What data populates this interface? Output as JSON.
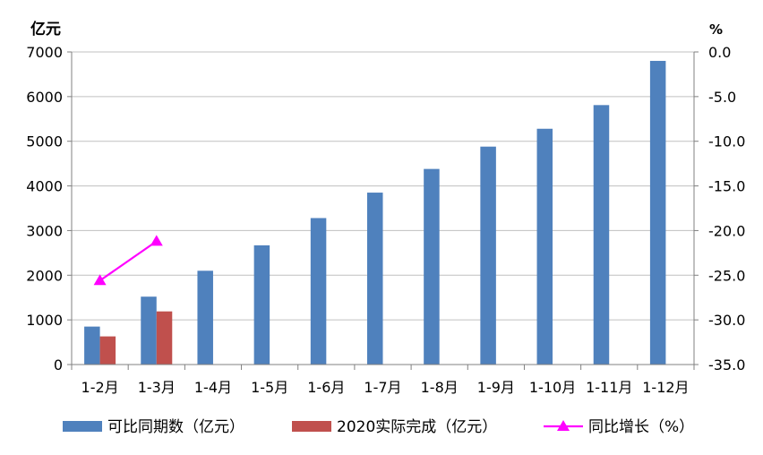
{
  "chart_data": {
    "type": "bar",
    "left_axis_label": "亿元",
    "right_axis_label": "%",
    "categories": [
      "1-2月",
      "1-3月",
      "1-4月",
      "1-5月",
      "1-6月",
      "1-7月",
      "1-8月",
      "1-9月",
      "1-10月",
      "1-11月",
      "1-12月"
    ],
    "ylim_left": [
      0,
      7000
    ],
    "yticks_left": [
      "0",
      "1000",
      "2000",
      "3000",
      "4000",
      "5000",
      "6000",
      "7000"
    ],
    "ylim_right": [
      -35.0,
      0.0
    ],
    "yticks_right": [
      "0.0",
      "-5.0",
      "-10.0",
      "-15.0",
      "-20.0",
      "-25.0",
      "-30.0",
      "-35.0"
    ],
    "grid": true,
    "legend_position": "bottom",
    "series": [
      {
        "name": "可比同期数（亿元）",
        "type": "bar",
        "axis": "left",
        "color": "#4F81BD",
        "values": [
          850,
          1520,
          2100,
          2670,
          3280,
          3850,
          4380,
          4880,
          5280,
          5810,
          6800
        ]
      },
      {
        "name": "2020实际完成（亿元）",
        "type": "bar",
        "axis": "left",
        "color": "#C0504D",
        "values": [
          630,
          1190,
          null,
          null,
          null,
          null,
          null,
          null,
          null,
          null,
          null
        ]
      },
      {
        "name": "同比增长（%）",
        "type": "line",
        "axis": "right",
        "color": "#FF00FF",
        "marker": "triangle",
        "values": [
          -25.6,
          -21.2,
          null,
          null,
          null,
          null,
          null,
          null,
          null,
          null,
          null
        ]
      }
    ]
  }
}
